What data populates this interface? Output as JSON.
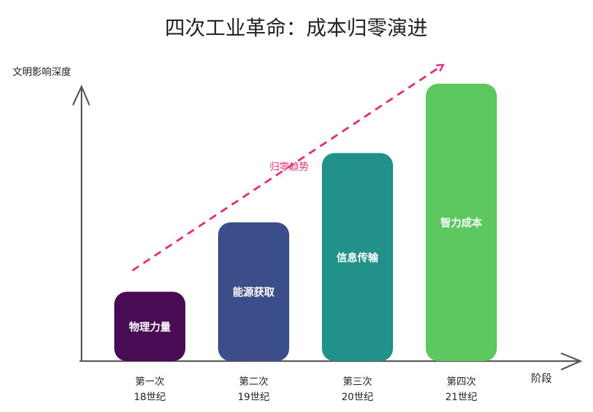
{
  "chart_data": {
    "type": "bar",
    "title": "四次工业革命：成本归零演进",
    "y_label": "文明影响深度",
    "x_label": "阶段",
    "categories": [
      "第一次",
      "第二次",
      "第三次",
      "第四次"
    ],
    "periods": [
      "18世纪",
      "19世纪",
      "20世纪",
      "21世纪"
    ],
    "bar_labels": [
      "物理力量",
      "能源获取",
      "信息传输",
      "智力成本"
    ],
    "values": [
      1,
      2,
      3,
      4
    ],
    "colors": [
      "#4a0b55",
      "#3b4e8a",
      "#22918a",
      "#5dc860"
    ],
    "ylim": [
      0,
      4
    ],
    "trend_label": "归零趋势",
    "trend_color": "#e0307a"
  }
}
